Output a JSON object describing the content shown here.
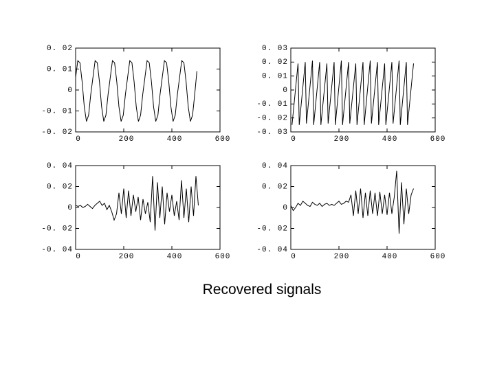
{
  "caption": "Recovered signals",
  "chart_data": [
    {
      "type": "line",
      "x": [
        0,
        9,
        18,
        27,
        36,
        45,
        54,
        63,
        72,
        81,
        90,
        99,
        108,
        117,
        126,
        135,
        144,
        153,
        162,
        171,
        180,
        189,
        198,
        207,
        216,
        225,
        234,
        243,
        252,
        261,
        270,
        279,
        288,
        297,
        306,
        315,
        324,
        333,
        342,
        351,
        360,
        369,
        378,
        387,
        396,
        405,
        414,
        423,
        432,
        441,
        450,
        459,
        468,
        477,
        486,
        495,
        504
      ],
      "values": [
        0.006,
        0.014,
        0.013,
        0.004,
        -0.008,
        -0.015,
        -0.012,
        -0.002,
        0.006,
        0.014,
        0.013,
        0.004,
        -0.008,
        -0.015,
        -0.012,
        -0.002,
        0.006,
        0.014,
        0.013,
        0.004,
        -0.008,
        -0.015,
        -0.012,
        -0.002,
        0.006,
        0.014,
        0.013,
        0.004,
        -0.008,
        -0.015,
        -0.012,
        -0.002,
        0.006,
        0.014,
        0.013,
        0.004,
        -0.008,
        -0.015,
        -0.012,
        -0.002,
        0.006,
        0.014,
        0.013,
        0.004,
        -0.008,
        -0.015,
        -0.012,
        -0.002,
        0.006,
        0.014,
        0.013,
        0.004,
        -0.008,
        -0.015,
        -0.012,
        -0.002,
        0.009
      ],
      "color": "#000000",
      "xlim": [
        0,
        600
      ],
      "xticks": [
        0,
        200,
        400,
        600
      ],
      "ylim": [
        -0.02,
        0.02
      ],
      "yticks": [
        {
          "value": -0.02,
          "label": "-0. 02"
        },
        {
          "value": -0.01,
          "label": "-0. 01"
        },
        0,
        {
          "value": 0.01,
          "label": "0. 01"
        },
        {
          "value": 0.02,
          "label": "0. 02"
        }
      ]
    },
    {
      "type": "line",
      "x": [
        5,
        30,
        35,
        60,
        65,
        90,
        95,
        120,
        125,
        150,
        155,
        180,
        185,
        210,
        215,
        240,
        245,
        270,
        275,
        300,
        305,
        330,
        335,
        360,
        365,
        390,
        395,
        420,
        425,
        450,
        455,
        480,
        485,
        510
      ],
      "values": [
        -0.025,
        0.019,
        -0.025,
        0.02,
        -0.024,
        0.021,
        -0.025,
        0.02,
        -0.025,
        0.019,
        -0.024,
        0.02,
        -0.025,
        0.021,
        -0.025,
        0.02,
        -0.024,
        0.019,
        -0.025,
        0.02,
        -0.025,
        0.021,
        -0.024,
        0.02,
        -0.025,
        0.019,
        -0.025,
        0.02,
        -0.024,
        0.021,
        -0.025,
        0.02,
        -0.025,
        0.019
      ],
      "color": "#000000",
      "xlim": [
        0,
        600
      ],
      "xticks": [
        0,
        200,
        400,
        600
      ],
      "ylim": [
        -0.03,
        0.03
      ],
      "yticks": [
        {
          "value": -0.03,
          "label": "-0. 03"
        },
        {
          "value": -0.02,
          "label": "-0. 02"
        },
        {
          "value": -0.01,
          "label": "-0. 01"
        },
        0,
        {
          "value": 0.01,
          "label": "0. 01"
        },
        {
          "value": 0.02,
          "label": "0. 02"
        },
        {
          "value": 0.03,
          "label": "0. 03"
        }
      ]
    },
    {
      "type": "line",
      "x": [
        0,
        10,
        20,
        30,
        40,
        50,
        60,
        70,
        80,
        90,
        100,
        110,
        120,
        130,
        140,
        150,
        160,
        170,
        180,
        190,
        200,
        210,
        220,
        230,
        240,
        250,
        260,
        270,
        280,
        290,
        300,
        310,
        320,
        330,
        340,
        350,
        360,
        370,
        380,
        390,
        400,
        410,
        420,
        430,
        440,
        450,
        460,
        470,
        480,
        490,
        500,
        510
      ],
      "values": [
        0.002,
        0.001,
        0.002,
        0,
        0.001,
        0.003,
        0.001,
        -0.001,
        0.002,
        0.004,
        0.006,
        0.002,
        0.004,
        -0.002,
        0.002,
        -0.004,
        -0.012,
        -0.006,
        0.014,
        -0.006,
        0.018,
        -0.01,
        0.016,
        -0.008,
        0.012,
        -0.004,
        0.01,
        -0.012,
        0.008,
        -0.006,
        0.005,
        -0.014,
        0.03,
        -0.022,
        0.024,
        -0.01,
        0.02,
        -0.016,
        0.014,
        -0.004,
        0.012,
        -0.008,
        0.006,
        -0.012,
        0.026,
        -0.01,
        0.018,
        -0.014,
        0.02,
        -0.008,
        0.03,
        0.002
      ],
      "color": "#000000",
      "xlim": [
        0,
        600
      ],
      "xticks": [
        0,
        200,
        400,
        600
      ],
      "ylim": [
        -0.04,
        0.04
      ],
      "yticks": [
        {
          "value": -0.04,
          "label": "-0. 04"
        },
        {
          "value": -0.02,
          "label": "-0. 02"
        },
        0,
        {
          "value": 0.02,
          "label": "0. 02"
        },
        {
          "value": 0.04,
          "label": "0. 04"
        }
      ]
    },
    {
      "type": "line",
      "x": [
        0,
        10,
        20,
        30,
        40,
        50,
        60,
        70,
        80,
        90,
        100,
        110,
        120,
        130,
        140,
        150,
        160,
        170,
        180,
        190,
        200,
        210,
        220,
        230,
        240,
        250,
        260,
        270,
        280,
        290,
        300,
        310,
        320,
        330,
        340,
        350,
        360,
        370,
        380,
        390,
        400,
        410,
        420,
        430,
        440,
        450,
        460,
        470,
        480,
        490,
        500,
        510
      ],
      "values": [
        0.002,
        -0.003,
        0,
        0.004,
        0.002,
        0.006,
        0.004,
        0.002,
        0.001,
        0.005,
        0.003,
        0.002,
        0.004,
        0.001,
        0.003,
        0.004,
        0.002,
        0.003,
        0.002,
        0.004,
        0.006,
        0.003,
        0.004,
        0.006,
        0.005,
        0.012,
        -0.008,
        0.016,
        -0.006,
        0.018,
        -0.01,
        0.014,
        -0.008,
        0.016,
        -0.006,
        0.014,
        -0.008,
        0.015,
        -0.006,
        0.012,
        -0.007,
        0.014,
        -0.006,
        0.01,
        0.035,
        -0.025,
        0.024,
        -0.016,
        0.018,
        -0.006,
        0.012,
        0.018
      ],
      "color": "#000000",
      "xlim": [
        0,
        600
      ],
      "xticks": [
        0,
        200,
        400,
        600
      ],
      "ylim": [
        -0.04,
        0.04
      ],
      "yticks": [
        {
          "value": -0.04,
          "label": "-0. 04"
        },
        {
          "value": -0.02,
          "label": "-0. 02"
        },
        0,
        {
          "value": 0.02,
          "label": "0. 02"
        },
        {
          "value": 0.04,
          "label": "0. 04"
        }
      ]
    }
  ]
}
